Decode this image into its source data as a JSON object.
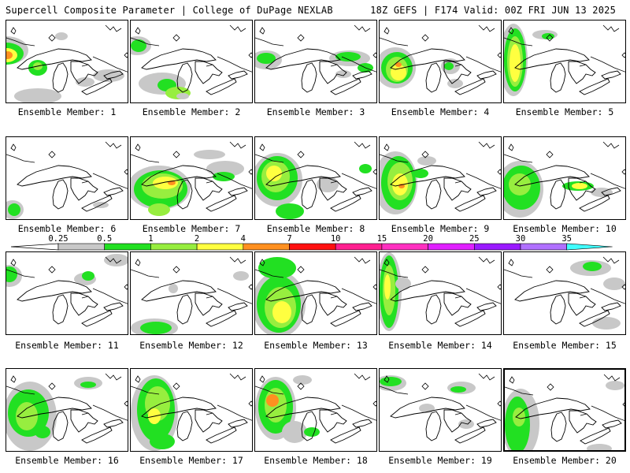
{
  "header": {
    "left": "Supercell Composite Parameter | College of DuPage NEXLAB",
    "right": "18Z GEFS | F174 Valid: 00Z FRI JUN 13 2025"
  },
  "colorbar": {
    "ticks": [
      "0.25",
      "0.5",
      "1",
      "2",
      "4",
      "7",
      "10",
      "15",
      "20",
      "25",
      "30",
      "35"
    ],
    "colors": [
      "#c8c8c8",
      "#22e022",
      "#97ee3f",
      "#ffff40",
      "#ff9020",
      "#ff1010",
      "#ff2090",
      "#ff30c0",
      "#e020ff",
      "#9a1aff",
      "#b070ff",
      "#40ffff"
    ]
  },
  "panels": [
    {
      "label": "Ensemble Member: 1"
    },
    {
      "label": "Ensemble Member: 2"
    },
    {
      "label": "Ensemble Member: 3"
    },
    {
      "label": "Ensemble Member: 4"
    },
    {
      "label": "Ensemble Member: 5"
    },
    {
      "label": "Ensemble Member: 6"
    },
    {
      "label": "Ensemble Member: 7"
    },
    {
      "label": "Ensemble Member: 8"
    },
    {
      "label": "Ensemble Member: 9"
    },
    {
      "label": "Ensemble Member: 10"
    },
    {
      "label": "Ensemble Member: 11"
    },
    {
      "label": "Ensemble Member: 12"
    },
    {
      "label": "Ensemble Member: 13"
    },
    {
      "label": "Ensemble Member: 14"
    },
    {
      "label": "Ensemble Member: 15"
    },
    {
      "label": "Ensemble Member: 16"
    },
    {
      "label": "Ensemble Member: 17"
    },
    {
      "label": "Ensemble Member: 18"
    },
    {
      "label": "Ensemble Member: 19"
    },
    {
      "label": "Ensemble Member: 20"
    }
  ]
}
